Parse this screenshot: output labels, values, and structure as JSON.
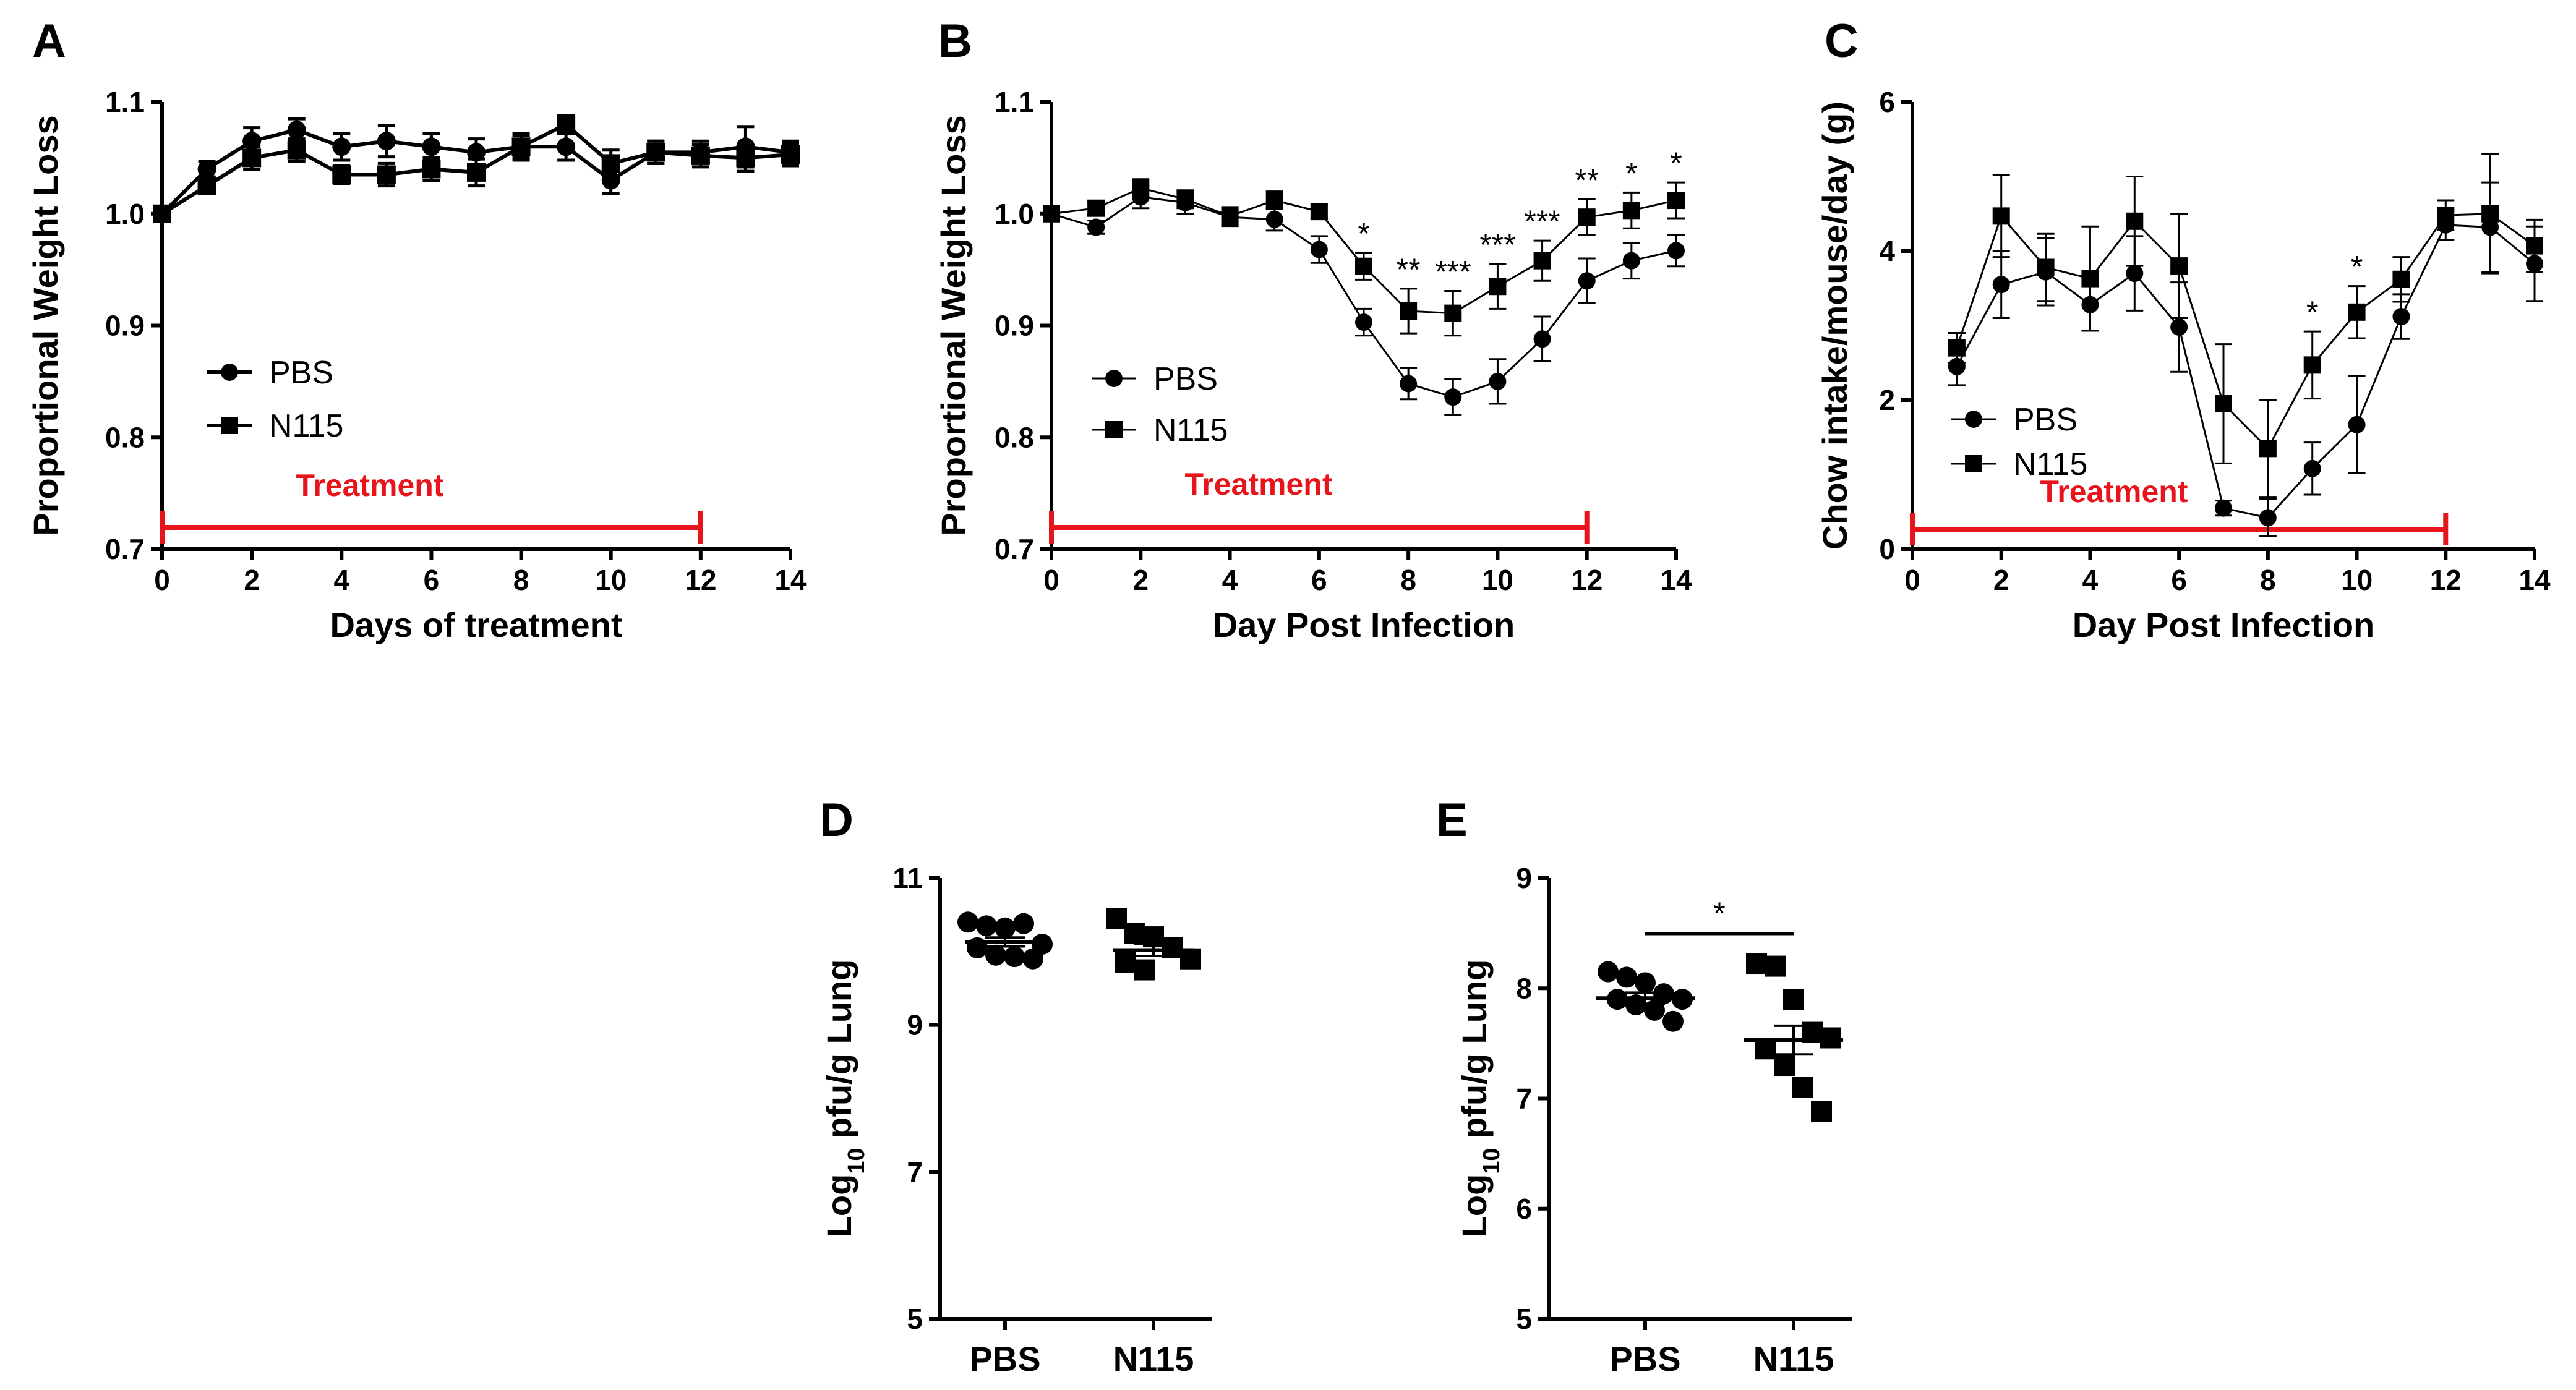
{
  "chart_data": [
    {
      "id": "A",
      "type": "line",
      "panel_label": "A",
      "xlabel": "Days of treatment",
      "ylabel": "Proportional Weight Loss",
      "xlim": [
        0,
        14
      ],
      "ylim": [
        0.7,
        1.1
      ],
      "xticks": [
        0,
        2,
        4,
        6,
        8,
        10,
        12,
        14
      ],
      "yticks": [
        "0.7",
        "0.8",
        "0.9",
        "1.0",
        "1.1"
      ],
      "x": [
        0,
        1,
        2,
        3,
        4,
        5,
        6,
        7,
        8,
        9,
        10,
        11,
        12,
        13,
        14
      ],
      "series": [
        {
          "name": "PBS",
          "marker": "circle",
          "values": [
            1.0,
            1.04,
            1.065,
            1.075,
            1.06,
            1.065,
            1.06,
            1.055,
            1.06,
            1.06,
            1.03,
            1.055,
            1.055,
            1.06,
            1.055
          ],
          "errors": [
            0.005,
            0.007,
            0.012,
            0.01,
            0.012,
            0.014,
            0.012,
            0.012,
            0.01,
            0.012,
            0.012,
            0.01,
            0.01,
            0.018,
            0.01
          ]
        },
        {
          "name": "N115",
          "marker": "square",
          "values": [
            1.0,
            1.025,
            1.05,
            1.057,
            1.035,
            1.035,
            1.04,
            1.037,
            1.06,
            1.08,
            1.045,
            1.055,
            1.052,
            1.05,
            1.053
          ],
          "errors": [
            0.005,
            0.007,
            0.01,
            0.01,
            0.008,
            0.01,
            0.01,
            0.012,
            0.012,
            0.008,
            0.012,
            0.01,
            0.01,
            0.012,
            0.01
          ]
        }
      ],
      "line_width": 6,
      "legend": [
        "PBS",
        "N115"
      ],
      "treatment": {
        "label": "Treatment",
        "start": 0,
        "end": 12,
        "y": 0.72
      }
    },
    {
      "id": "B",
      "type": "line",
      "panel_label": "B",
      "xlabel": "Day Post Infection",
      "ylabel": "Proportional Weight Loss",
      "xlim": [
        0,
        14
      ],
      "ylim": [
        0.7,
        1.1
      ],
      "xticks": [
        0,
        2,
        4,
        6,
        8,
        10,
        12,
        14
      ],
      "yticks": [
        "0.7",
        "0.8",
        "0.9",
        "1.0",
        "1.1"
      ],
      "x": [
        0,
        1,
        2,
        3,
        4,
        5,
        6,
        7,
        8,
        9,
        10,
        11,
        12,
        13,
        14
      ],
      "series": [
        {
          "name": "PBS",
          "marker": "circle",
          "values": [
            1.0,
            0.988,
            1.015,
            1.01,
            0.997,
            0.995,
            0.968,
            0.903,
            0.848,
            0.836,
            0.85,
            0.888,
            0.94,
            0.958,
            0.967
          ],
          "errors": [
            0.005,
            0.006,
            0.01,
            0.01,
            0.008,
            0.01,
            0.012,
            0.012,
            0.014,
            0.016,
            0.02,
            0.02,
            0.02,
            0.016,
            0.014
          ]
        },
        {
          "name": "N115",
          "marker": "square",
          "values": [
            1.0,
            1.005,
            1.023,
            1.013,
            0.998,
            1.012,
            1.002,
            0.953,
            0.913,
            0.911,
            0.935,
            0.958,
            0.997,
            1.003,
            1.012
          ],
          "errors": [
            0.005,
            0.006,
            0.008,
            0.008,
            0.008,
            0.008,
            0.006,
            0.012,
            0.02,
            0.02,
            0.02,
            0.018,
            0.016,
            0.016,
            0.016
          ]
        }
      ],
      "line_width": 3,
      "legend": [
        "PBS",
        "N115"
      ],
      "significance": [
        {
          "x": 7,
          "label": "*"
        },
        {
          "x": 8,
          "label": "**"
        },
        {
          "x": 9,
          "label": "***"
        },
        {
          "x": 10,
          "label": "***"
        },
        {
          "x": 11,
          "label": "***"
        },
        {
          "x": 12,
          "label": "**"
        },
        {
          "x": 13,
          "label": "*"
        },
        {
          "x": 14,
          "label": "*"
        }
      ],
      "treatment": {
        "label": "Treatment",
        "start": 0,
        "end": 12,
        "y": 0.72
      }
    },
    {
      "id": "C",
      "type": "line",
      "panel_label": "C",
      "xlabel": "Day Post Infection",
      "ylabel": "Chow intake/mouse/day (g)",
      "xlim": [
        0,
        14
      ],
      "ylim": [
        0,
        6
      ],
      "xticks": [
        0,
        2,
        4,
        6,
        8,
        10,
        12,
        14
      ],
      "yticks": [
        "0",
        "2",
        "4",
        "6"
      ],
      "x": [
        1,
        2,
        3,
        4,
        5,
        6,
        7,
        8,
        9,
        10,
        11,
        12,
        13,
        14
      ],
      "series": [
        {
          "name": "PBS",
          "marker": "circle",
          "values": [
            2.45,
            3.55,
            3.72,
            3.28,
            3.7,
            2.98,
            0.55,
            0.42,
            1.08,
            1.67,
            3.12,
            4.35,
            4.32,
            3.83
          ],
          "errors": [
            0.25,
            0.45,
            0.45,
            0.35,
            0.5,
            0.6,
            0.1,
            0.25,
            0.35,
            0.65,
            0.3,
            0.2,
            0.6,
            0.5
          ]
        },
        {
          "name": "N115",
          "marker": "square",
          "values": [
            2.7,
            4.47,
            3.78,
            3.63,
            4.4,
            3.8,
            1.95,
            1.35,
            2.47,
            3.18,
            3.62,
            4.48,
            4.5,
            4.07
          ],
          "errors": [
            0.2,
            0.55,
            0.45,
            0.7,
            0.6,
            0.7,
            0.8,
            0.65,
            0.45,
            0.35,
            0.3,
            0.2,
            0.8,
            0.35
          ]
        }
      ],
      "line_width": 3,
      "legend": [
        "PBS",
        "N115"
      ],
      "significance": [
        {
          "x": 9,
          "label": "*"
        },
        {
          "x": 10,
          "label": "*"
        }
      ],
      "treatment": {
        "label": "Treatment",
        "start": 0,
        "end": 12,
        "y": 0.25
      }
    },
    {
      "id": "D",
      "type": "scatter",
      "panel_label": "D",
      "xlabel": "",
      "ylabel": "Log10 pfu/g Lung",
      "ylim": [
        5,
        11
      ],
      "yticks": [
        "5",
        "7",
        "9",
        "11"
      ],
      "categories": [
        "PBS",
        "N115"
      ],
      "groups": [
        {
          "name": "PBS",
          "marker": "circle",
          "mean": 10.13,
          "sem": 0.06,
          "values": [
            10.4,
            10.35,
            10.32,
            10.38,
            10.1,
            10.05,
            9.95,
            9.93,
            9.9
          ]
        },
        {
          "name": "N115",
          "marker": "square",
          "values": [
            10.45,
            10.25,
            10.2,
            10.05,
            9.9,
            9.85,
            9.75
          ],
          "mean": 10.02,
          "sem": 0.08
        }
      ]
    },
    {
      "id": "E",
      "type": "scatter",
      "panel_label": "E",
      "xlabel": "",
      "ylabel": "Log10 pfu/g Lung",
      "ylim": [
        5,
        9
      ],
      "yticks": [
        "5",
        "6",
        "7",
        "8",
        "9"
      ],
      "categories": [
        "PBS",
        "N115"
      ],
      "groups": [
        {
          "name": "PBS",
          "marker": "circle",
          "mean": 7.91,
          "sem": 0.05,
          "values": [
            8.15,
            8.1,
            8.05,
            7.95,
            7.9,
            7.9,
            7.85,
            7.8,
            7.7
          ]
        },
        {
          "name": "N115",
          "marker": "square",
          "mean": 7.53,
          "sem": 0.13,
          "values": [
            8.22,
            8.2,
            7.9,
            7.6,
            7.55,
            7.45,
            7.3,
            7.1,
            6.88
          ]
        }
      ],
      "comparison": {
        "label": "*"
      }
    }
  ]
}
